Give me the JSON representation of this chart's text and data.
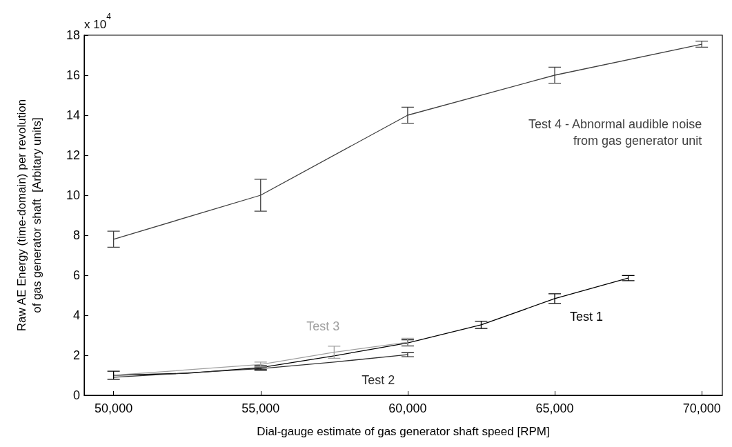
{
  "chart_data": {
    "type": "line",
    "xlabel": "Dial-gauge estimate of gas generator shaft speed [RPM]",
    "ylabel": "Raw AE Energy (time-domain) per revolution\nof gas generator shaft  [Arbitary units]",
    "annotations": [
      "x 10$^{4}$"
    ],
    "series": [
      {
        "name": "Test 1",
        "color": "#000000",
        "x": [
          50000,
          52500,
          55000,
          57500,
          60000,
          62500,
          65000,
          67500
        ],
        "values": [
          1.0,
          1.1,
          1.38,
          1.97,
          2.62,
          3.52,
          4.83,
          5.86
        ],
        "errors": [
          0.2,
          null,
          0.1,
          null,
          0.15,
          0.18,
          0.24,
          0.13
        ]
      },
      {
        "name": "Test 2",
        "color": "#303030",
        "x": [
          50000,
          55000,
          57500,
          60000
        ],
        "values": [
          0.9,
          1.33,
          1.66,
          2.03
        ],
        "errors": [
          null,
          0.08,
          null,
          0.1
        ]
      },
      {
        "name": "Test 3",
        "color": "#a0a0a0",
        "x": [
          50000,
          55000,
          57500,
          60000
        ],
        "values": [
          1.0,
          1.54,
          2.15,
          2.65
        ],
        "errors": [
          null,
          0.12,
          0.3,
          0.2
        ]
      },
      {
        "name": "Test 4 - Abnormal audible noise\nfrom gas generator unit",
        "color": "#404040",
        "x": [
          50000,
          55000,
          60000,
          65000,
          70000
        ],
        "values": [
          7.8,
          10.0,
          14.0,
          16.0,
          17.55
        ],
        "errors": [
          0.4,
          0.8,
          0.4,
          0.4,
          0.15
        ]
      }
    ],
    "xlim": [
      49000,
      70700
    ],
    "xticks": [
      {
        "value": 50000,
        "label": "50,000"
      },
      {
        "value": 55000,
        "label": "55,000"
      },
      {
        "value": 60000,
        "label": "60,000"
      },
      {
        "value": 65000,
        "label": "65,000"
      },
      {
        "value": 70000,
        "label": "70,000"
      }
    ],
    "ylim": [
      0,
      18
    ],
    "yticks": [
      0,
      2,
      4,
      6,
      8,
      10,
      12,
      14,
      16,
      18
    ],
    "grid": false,
    "legend": false,
    "line_style": "solid"
  }
}
